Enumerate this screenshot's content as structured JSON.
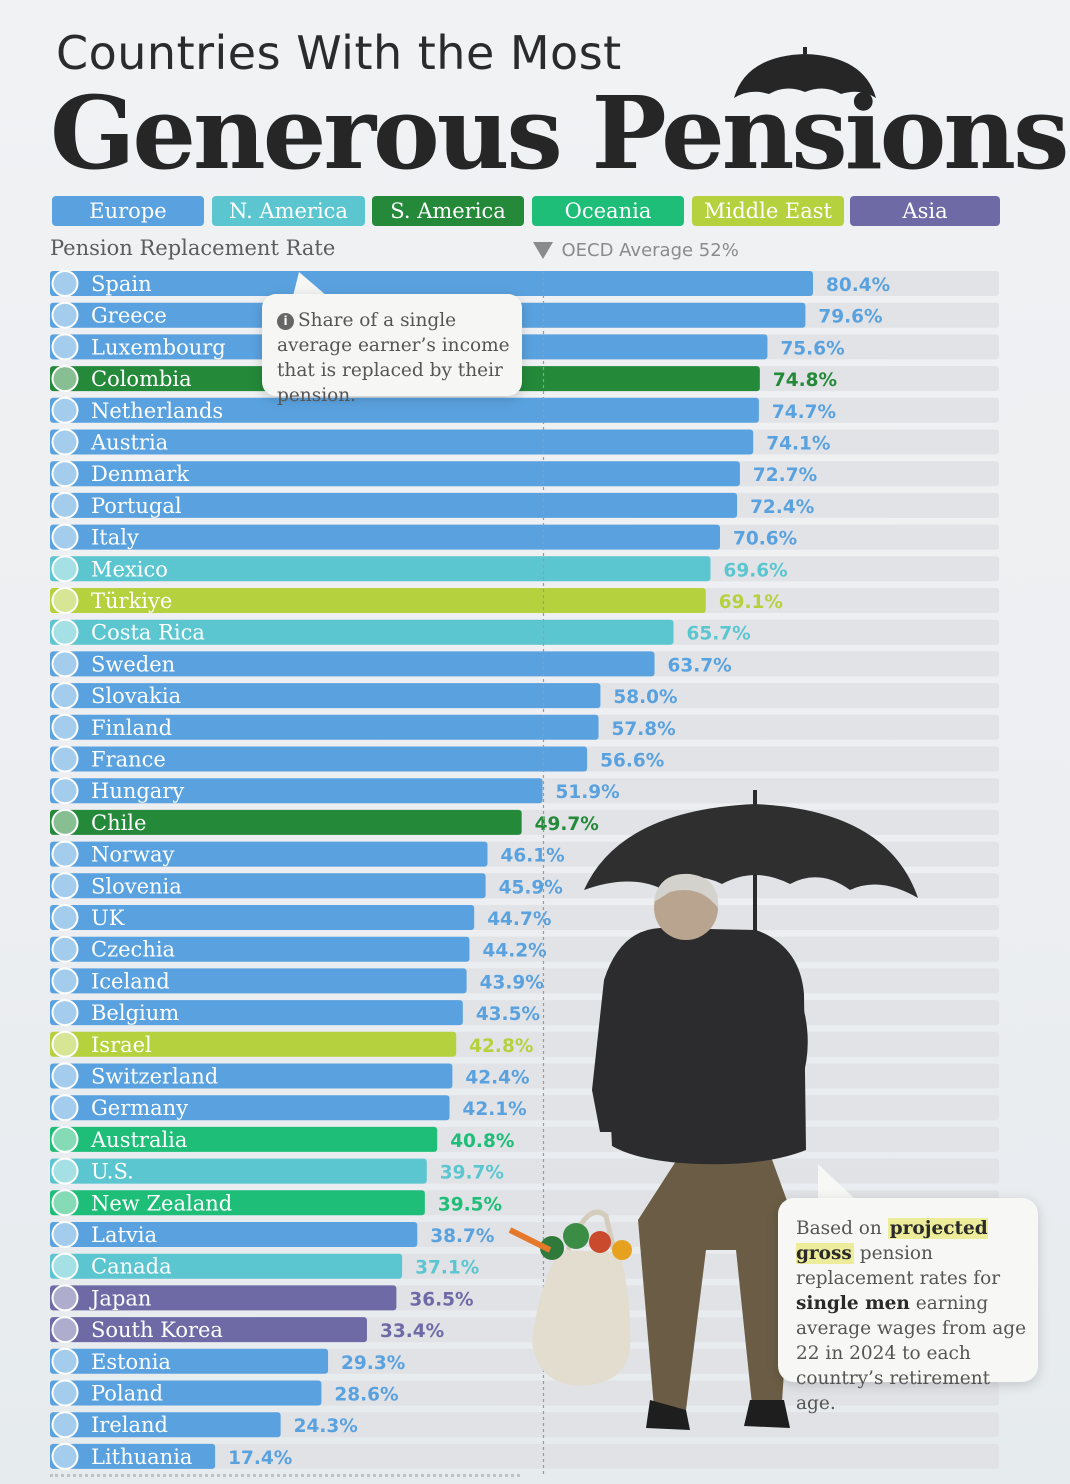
{
  "title_line1": "Countries With the Most",
  "title_line2": "Generous Pensions",
  "legend": [
    {
      "label": "Europe",
      "color": "#5aa2df"
    },
    {
      "label": "N. America",
      "color": "#5bc6d0"
    },
    {
      "label": "S. America",
      "color": "#248a3a"
    },
    {
      "label": "Oceania",
      "color": "#1fbe78"
    },
    {
      "label": "Middle East",
      "color": "#b5d23e"
    },
    {
      "label": "Asia",
      "color": "#6e6aa6"
    }
  ],
  "callout": {
    "text": "Share of a single average earner’s income that is replaced by their pension."
  },
  "note": {
    "p1": "Based on",
    "h1": "projected gross",
    "p2": "pension replacement rates for",
    "h2": "single men",
    "p3": "earning average wages from age 22 in 2024 to each country’s retirement age."
  },
  "chart_data": {
    "type": "bar",
    "orientation": "horizontal",
    "ylabel": "Pension Replacement Rate",
    "unit": "%",
    "reference_line": {
      "label": "OECD Average 52%",
      "value": 52
    },
    "xlim": [
      0,
      100
    ],
    "region_colors": {
      "Europe": "#5aa2df",
      "N. America": "#5bc6d0",
      "S. America": "#248a3a",
      "Oceania": "#1fbe78",
      "Middle East": "#b5d23e",
      "Asia": "#6e6aa6"
    },
    "bars": [
      {
        "country": "Spain",
        "value": 80.4,
        "label": "80.4%",
        "region": "Europe"
      },
      {
        "country": "Greece",
        "value": 79.6,
        "label": "79.6%",
        "region": "Europe"
      },
      {
        "country": "Luxembourg",
        "value": 75.6,
        "label": "75.6%",
        "region": "Europe"
      },
      {
        "country": "Colombia",
        "value": 74.8,
        "label": "74.8%",
        "region": "S. America"
      },
      {
        "country": "Netherlands",
        "value": 74.7,
        "label": "74.7%",
        "region": "Europe"
      },
      {
        "country": "Austria",
        "value": 74.1,
        "label": "74.1%",
        "region": "Europe"
      },
      {
        "country": "Denmark",
        "value": 72.7,
        "label": "72.7%",
        "region": "Europe"
      },
      {
        "country": "Portugal",
        "value": 72.4,
        "label": "72.4%",
        "region": "Europe"
      },
      {
        "country": "Italy",
        "value": 70.6,
        "label": "70.6%",
        "region": "Europe"
      },
      {
        "country": "Mexico",
        "value": 69.6,
        "label": "69.6%",
        "region": "N. America"
      },
      {
        "country": "Türkiye",
        "value": 69.1,
        "label": "69.1%",
        "region": "Middle East"
      },
      {
        "country": "Costa Rica",
        "value": 65.7,
        "label": "65.7%",
        "region": "N. America"
      },
      {
        "country": "Sweden",
        "value": 63.7,
        "label": "63.7%",
        "region": "Europe"
      },
      {
        "country": "Slovakia",
        "value": 58.0,
        "label": "58.0%",
        "region": "Europe"
      },
      {
        "country": "Finland",
        "value": 57.8,
        "label": "57.8%",
        "region": "Europe"
      },
      {
        "country": "France",
        "value": 56.6,
        "label": "56.6%",
        "region": "Europe"
      },
      {
        "country": "Hungary",
        "value": 51.9,
        "label": "51.9%",
        "region": "Europe"
      },
      {
        "country": "Chile",
        "value": 49.7,
        "label": "49.7%",
        "region": "S. America"
      },
      {
        "country": "Norway",
        "value": 46.1,
        "label": "46.1%",
        "region": "Europe"
      },
      {
        "country": "Slovenia",
        "value": 45.9,
        "label": "45.9%",
        "region": "Europe"
      },
      {
        "country": "UK",
        "value": 44.7,
        "label": "44.7%",
        "region": "Europe"
      },
      {
        "country": "Czechia",
        "value": 44.2,
        "label": "44.2%",
        "region": "Europe"
      },
      {
        "country": "Iceland",
        "value": 43.9,
        "label": "43.9%",
        "region": "Europe"
      },
      {
        "country": "Belgium",
        "value": 43.5,
        "label": "43.5%",
        "region": "Europe"
      },
      {
        "country": "Israel",
        "value": 42.8,
        "label": "42.8%",
        "region": "Middle East"
      },
      {
        "country": "Switzerland",
        "value": 42.4,
        "label": "42.4%",
        "region": "Europe"
      },
      {
        "country": "Germany",
        "value": 42.1,
        "label": "42.1%",
        "region": "Europe"
      },
      {
        "country": "Australia",
        "value": 40.8,
        "label": "40.8%",
        "region": "Oceania"
      },
      {
        "country": "U.S.",
        "value": 39.7,
        "label": "39.7%",
        "region": "N. America"
      },
      {
        "country": "New Zealand",
        "value": 39.5,
        "label": "39.5%",
        "region": "Oceania"
      },
      {
        "country": "Latvia",
        "value": 38.7,
        "label": "38.7%",
        "region": "Europe"
      },
      {
        "country": "Canada",
        "value": 37.1,
        "label": "37.1%",
        "region": "N. America"
      },
      {
        "country": "Japan",
        "value": 36.5,
        "label": "36.5%",
        "region": "Asia"
      },
      {
        "country": "South Korea",
        "value": 33.4,
        "label": "33.4%",
        "region": "Asia"
      },
      {
        "country": "Estonia",
        "value": 29.3,
        "label": "29.3%",
        "region": "Europe"
      },
      {
        "country": "Poland",
        "value": 28.6,
        "label": "28.6%",
        "region": "Europe"
      },
      {
        "country": "Ireland",
        "value": 24.3,
        "label": "24.3%",
        "region": "Europe"
      },
      {
        "country": "Lithuania",
        "value": 17.4,
        "label": "17.4%",
        "region": "Europe"
      }
    ]
  }
}
